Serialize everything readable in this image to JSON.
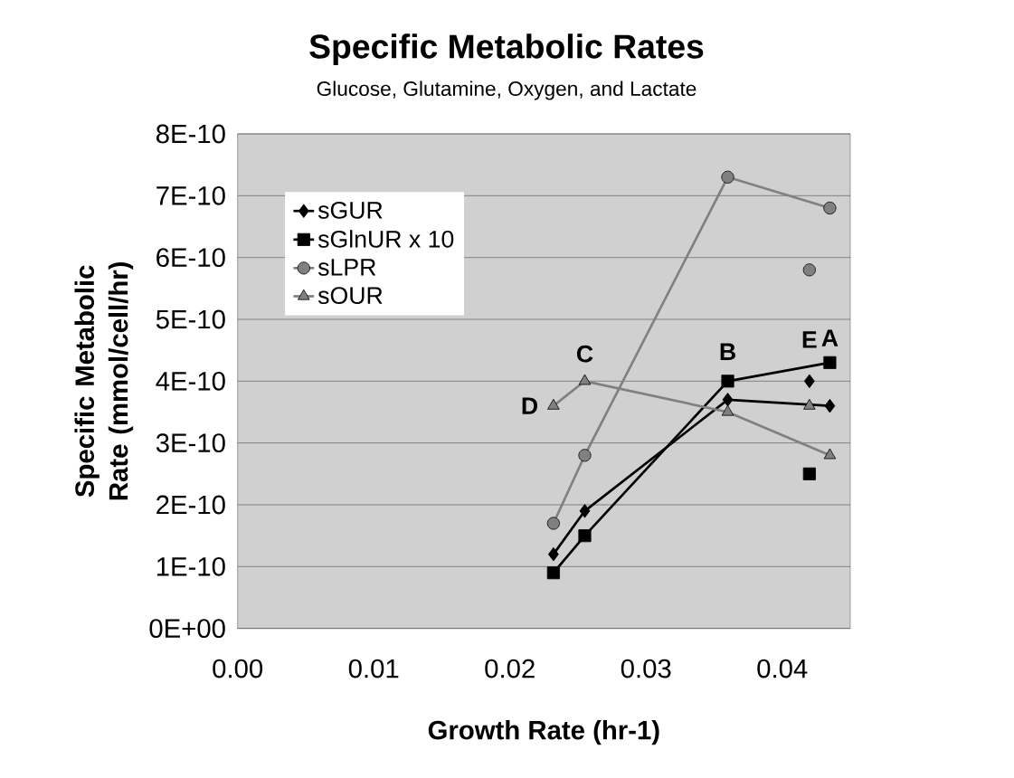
{
  "chart_data": {
    "type": "line",
    "title": "Specific Metabolic Rates",
    "subtitle": "Glucose, Glutamine, Oxygen, and Lactate",
    "xlabel": "Growth Rate (hr-1)",
    "ylabel": "Specific Metabolic Rate (mmol/cell/hr)",
    "x": [
      0.0232,
      0.0255,
      0.036,
      0.0435,
      null,
      0.042
    ],
    "series": [
      {
        "name": "sGUR",
        "color": "#000000",
        "marker": "diamond",
        "values": [
          1.2e-10,
          1.9e-10,
          3.7e-10,
          3.6e-10,
          null,
          4e-10
        ]
      },
      {
        "name": "sGlnUR x 10",
        "color": "#000000",
        "marker": "square",
        "values": [
          9e-11,
          1.5e-10,
          4e-10,
          4.3e-10,
          null,
          2.5e-10
        ]
      },
      {
        "name": "sLPR",
        "color": "#808080",
        "marker": "circle",
        "values": [
          1.7e-10,
          2.8e-10,
          7.3e-10,
          6.8e-10,
          null,
          5.8e-10
        ]
      },
      {
        "name": "sOUR",
        "color": "#808080",
        "marker": "triangle",
        "values": [
          3.6e-10,
          4e-10,
          3.5e-10,
          2.8e-10,
          null,
          3.6e-10
        ]
      }
    ],
    "annotations": [
      {
        "text": "D",
        "x": 0.0232,
        "y": 3.6e-10
      },
      {
        "text": "C",
        "x": 0.0255,
        "y": 4e-10
      },
      {
        "text": "B",
        "x": 0.036,
        "y": 4e-10
      },
      {
        "text": "E",
        "x": 0.042,
        "y": 4e-10
      },
      {
        "text": "A",
        "x": 0.0435,
        "y": 4.3e-10
      }
    ],
    "xlim": [
      0,
      0.045
    ],
    "ylim": [
      0,
      8e-10
    ],
    "xticks": [
      {
        "value": 0,
        "label": "0.00"
      },
      {
        "value": 0.01,
        "label": "0.01"
      },
      {
        "value": 0.02,
        "label": "0.02"
      },
      {
        "value": 0.03,
        "label": "0.03"
      },
      {
        "value": 0.04,
        "label": "0.04"
      }
    ],
    "yticks": [
      {
        "value": 0,
        "label": "0E+00"
      },
      {
        "value": 1e-10,
        "label": "1E-10"
      },
      {
        "value": 2e-10,
        "label": "2E-10"
      },
      {
        "value": 3e-10,
        "label": "3E-10"
      },
      {
        "value": 4e-10,
        "label": "4E-10"
      },
      {
        "value": 5e-10,
        "label": "5E-10"
      },
      {
        "value": 6e-10,
        "label": "6E-10"
      },
      {
        "value": 7e-10,
        "label": "7E-10"
      },
      {
        "value": 8e-10,
        "label": "8E-10"
      }
    ],
    "grid": "y",
    "legend": "top left"
  }
}
